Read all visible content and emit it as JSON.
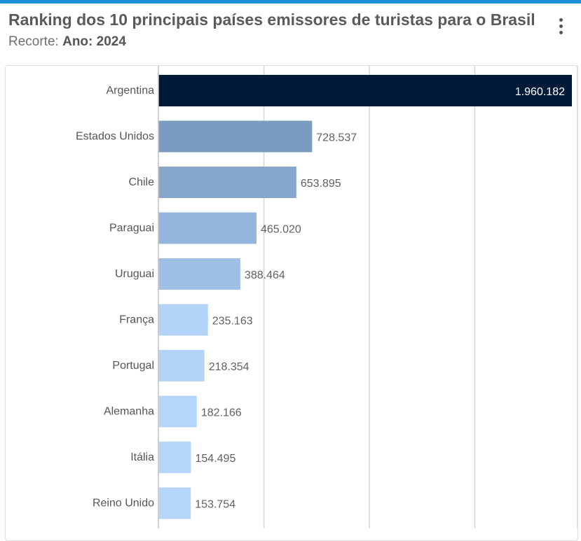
{
  "header": {
    "title": "Ranking dos 10 principais países emissores de turistas para o Brasil",
    "subtitle_prefix": "Recorte: ",
    "subtitle_value": "Ano: 2024"
  },
  "menu": {
    "icon": "kebab-menu-icon"
  },
  "colors": {
    "accent_strip": "#1e90d6",
    "bars": [
      "#001a38",
      "#7a9cc0",
      "#86a7cb",
      "#94b6dc",
      "#9fbfe4",
      "#b3d4f7",
      "#b3d4f7",
      "#b5d6f9",
      "#b5d6f9",
      "#b5d6f9"
    ],
    "grid": "#d6d6d6"
  },
  "chart_data": {
    "type": "bar",
    "orientation": "horizontal",
    "categories": [
      "Argentina",
      "Estados Unidos",
      "Chile",
      "Paraguai",
      "Uruguai",
      "França",
      "Portugal",
      "Alemanha",
      "Itália",
      "Reino Unido"
    ],
    "values": [
      1960182,
      728537,
      653895,
      465020,
      388464,
      235163,
      218354,
      182166,
      154495,
      153754
    ],
    "value_labels": [
      "1.960.182",
      "728.537",
      "653.895",
      "465.020",
      "388.464",
      "235.163",
      "218.354",
      "182.166",
      "154.495",
      "153.754"
    ],
    "xlim": [
      0,
      2000000
    ],
    "gridlines": [
      0,
      500000,
      1000000,
      1500000,
      2000000
    ],
    "grid": true,
    "legend": "none"
  }
}
